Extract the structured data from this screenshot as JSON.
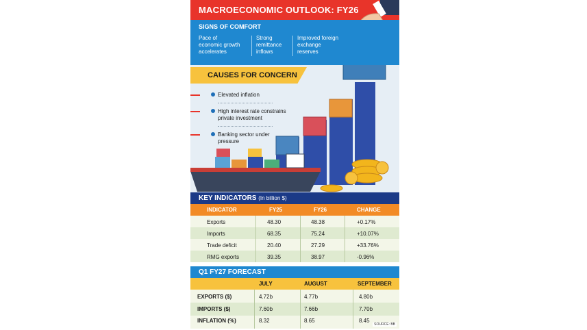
{
  "title": "MACROECONOMIC OUTLOOK: FY26",
  "signs_of_comfort": {
    "heading": "SIGNS OF COMFORT",
    "items": [
      [
        "Pace of",
        "economic growth",
        "accelerates"
      ],
      [
        "Strong",
        "remittance",
        "inflows"
      ],
      [
        "Improved foreign",
        "exchange",
        "reserves"
      ]
    ]
  },
  "causes_for_concern": {
    "heading": "CAUSES FOR CONCERN",
    "items": [
      [
        "Elevated inflation"
      ],
      [
        "High interest rate constrains",
        "private investment"
      ],
      [
        "Banking sector under",
        "pressure"
      ]
    ]
  },
  "key_indicators": {
    "heading": "KEY INDICATORS",
    "unit": "(In billion $)",
    "columns": [
      "INDICATOR",
      "FY25",
      "FY26",
      "CHANGE"
    ],
    "rows": [
      [
        "Exports",
        "48.30",
        "48.38",
        "+0.17%"
      ],
      [
        "Imports",
        "68.35",
        "75.24",
        "+10.07%"
      ],
      [
        "Trade deficit",
        "20.40",
        "27.29",
        "+33.76%"
      ],
      [
        "RMG exports",
        "39.35",
        "38.97",
        "-0.96%"
      ]
    ]
  },
  "forecast": {
    "heading": "Q1 FY27 FORECAST",
    "columns": [
      "JULY",
      "AUGUST",
      "SEPTEMBER"
    ],
    "rows": [
      [
        "EXPORTS ($)",
        "4.72b",
        "4.77b",
        "4.80b"
      ],
      [
        "IMPORTS ($)",
        "7.60b",
        "7.66b",
        "7.70b"
      ],
      [
        "INFLATION (%)",
        "8.32",
        "8.65",
        "8.45"
      ]
    ]
  },
  "source": "SOURCE: BB",
  "colors": {
    "title_bar": "#e8342a",
    "comfort_bg": "#1f88d0",
    "concern_banner": "#f7c23d",
    "indicators_bar": "#1b3a87",
    "table_header": "#f28b25",
    "row_light": "#f3f6e8",
    "row_green": "#dfead0"
  }
}
